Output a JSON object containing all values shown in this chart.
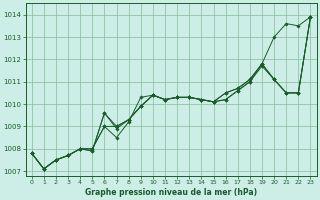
{
  "title": "Graphe pression niveau de la mer (hPa)",
  "background_color": "#cceee6",
  "grid_color": "#88bb99",
  "line_color": "#1a5c2a",
  "marker_color": "#1a5c2a",
  "xlim": [
    -0.5,
    23.5
  ],
  "ylim": [
    1006.8,
    1014.5
  ],
  "yticks": [
    1007,
    1008,
    1009,
    1010,
    1011,
    1012,
    1013,
    1014
  ],
  "xticks": [
    0,
    1,
    2,
    3,
    4,
    5,
    6,
    7,
    8,
    9,
    10,
    11,
    12,
    13,
    14,
    15,
    16,
    17,
    18,
    19,
    20,
    21,
    22,
    23
  ],
  "series": [
    [
      1007.8,
      1007.1,
      1007.5,
      1007.7,
      1008.0,
      1008.0,
      1009.0,
      1008.5,
      1009.2,
      1010.3,
      1010.4,
      1010.2,
      1010.3,
      1010.3,
      1010.2,
      1010.1,
      1010.2,
      1010.6,
      1011.0,
      1011.8,
      1013.0,
      1013.6,
      1013.5,
      1013.9
    ],
    [
      1007.8,
      1007.1,
      1007.5,
      1007.7,
      1008.0,
      1007.9,
      1009.6,
      1008.9,
      1009.3,
      1009.9,
      1010.4,
      1010.2,
      1010.3,
      1010.3,
      1010.2,
      1010.1,
      1010.2,
      1010.6,
      1011.0,
      1011.7,
      1011.1,
      1010.5,
      1010.5,
      1013.9
    ],
    [
      1007.8,
      1007.1,
      1007.5,
      1007.7,
      1008.0,
      1007.9,
      1009.6,
      1009.0,
      1009.3,
      1009.9,
      1010.4,
      1010.2,
      1010.3,
      1010.3,
      1010.2,
      1010.1,
      1010.5,
      1010.7,
      1011.1,
      1011.8,
      1011.1,
      1010.5,
      1010.5,
      1013.9
    ],
    [
      1007.8,
      1007.1,
      1007.5,
      1007.7,
      1008.0,
      1008.0,
      1009.0,
      1009.0,
      1009.3,
      1009.9,
      1010.4,
      1010.2,
      1010.3,
      1010.3,
      1010.2,
      1010.1,
      1010.5,
      1010.7,
      1011.1,
      1011.8,
      1011.1,
      1010.5,
      1010.5,
      1013.9
    ]
  ]
}
